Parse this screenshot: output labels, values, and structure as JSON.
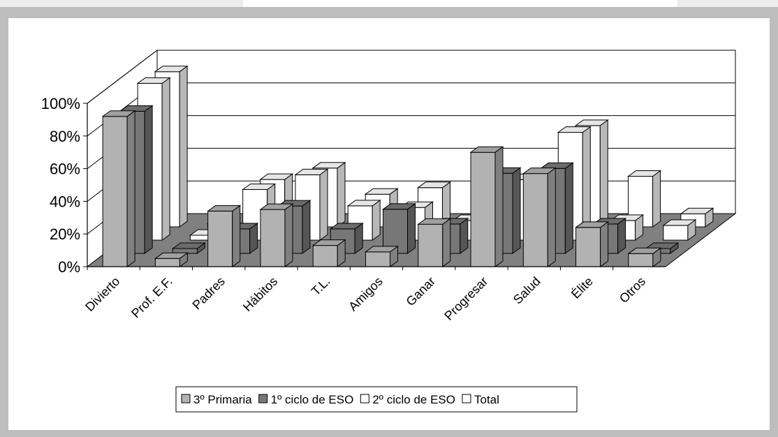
{
  "chart_data": {
    "type": "bar",
    "style": "3d-clustered-column",
    "categories": [
      "Divierto",
      "Prof. E.F.",
      "Padres",
      "Hábitos",
      "T.L.",
      "Amigos",
      "Ganar",
      "Progresar",
      "Salud",
      "Élite",
      "Otros"
    ],
    "series": [
      {
        "name": "3º Primaria",
        "color": "#b2b2b2",
        "values": [
          92,
          5,
          34,
          35,
          13,
          9,
          26,
          70,
          57,
          24,
          8
        ]
      },
      {
        "name": "1º ciclo de ESO",
        "color": "#777777",
        "values": [
          87,
          3,
          15,
          29,
          15,
          27,
          18,
          49,
          52,
          18,
          3
        ]
      },
      {
        "name": "2º ciclo de ESO",
        "color": "#ffffff",
        "values": [
          96,
          3,
          31,
          40,
          21,
          20,
          12,
          37,
          66,
          12,
          9
        ]
      },
      {
        "name": "Total",
        "color": "#ffffff",
        "values": [
          95,
          2,
          29,
          36,
          20,
          24,
          7,
          27,
          62,
          31,
          8
        ]
      }
    ],
    "ylim": [
      0,
      100
    ],
    "yticks": [
      "0%",
      "20%",
      "40%",
      "60%",
      "80%",
      "100%"
    ],
    "grid": true,
    "legend_position": "bottom",
    "wall_color": "#ffffff",
    "floor_color": "#808080"
  }
}
